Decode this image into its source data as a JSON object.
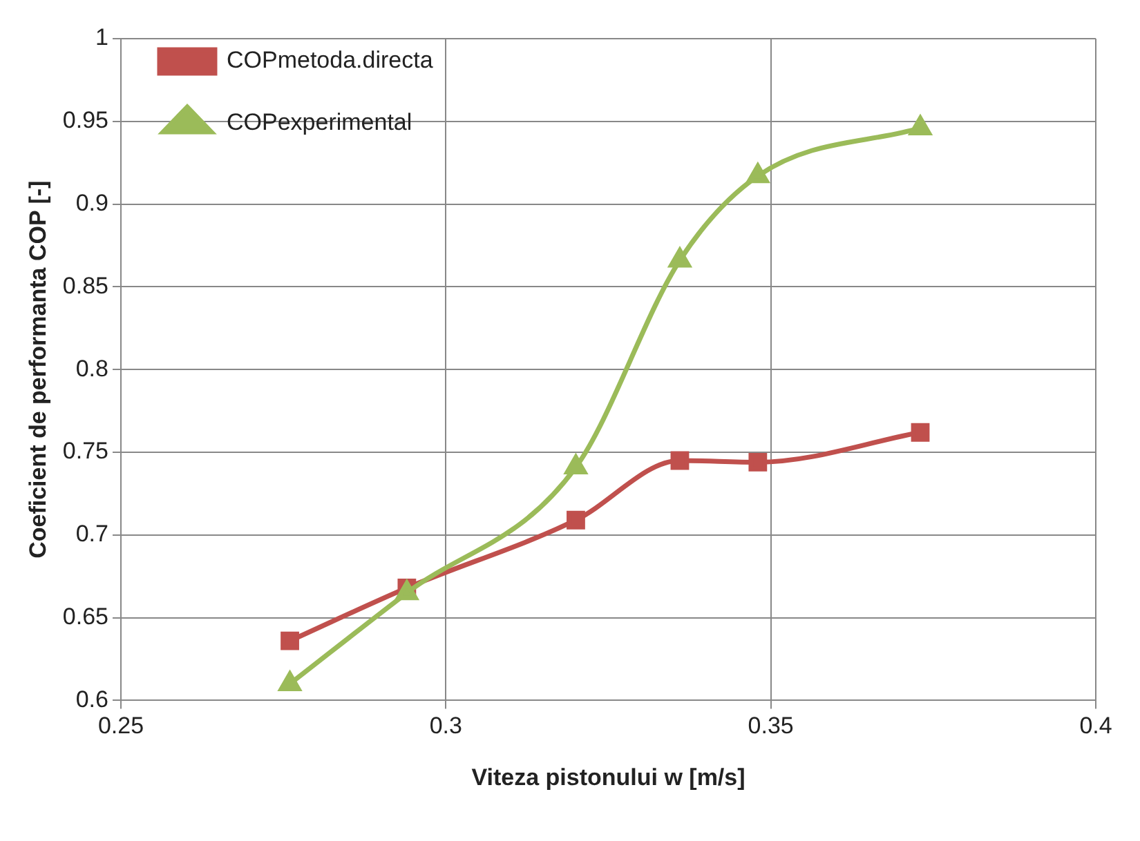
{
  "chart_data": {
    "type": "line",
    "xlabel": "Viteza pistonului w [m/s]",
    "ylabel": "Coeficient de performanta COP [-]",
    "x": [
      0.276,
      0.294,
      0.32,
      0.336,
      0.348,
      0.373
    ],
    "series": [
      {
        "name": "COPmetoda.directa",
        "color": "#c0504d",
        "marker": "square",
        "values": [
          0.636,
          0.668,
          0.709,
          0.745,
          0.744,
          0.762
        ]
      },
      {
        "name": "COPexperimental",
        "color": "#9bbb59",
        "marker": "triangle",
        "values": [
          0.61,
          0.665,
          0.741,
          0.866,
          0.917,
          0.946
        ]
      }
    ],
    "xlim": [
      0.25,
      0.4
    ],
    "xticks": [
      0.25,
      0.3,
      0.35,
      0.4
    ],
    "ylim": [
      0.6,
      1
    ],
    "yticks": [
      0.6,
      0.65,
      0.7,
      0.75,
      0.8,
      0.85,
      0.9,
      0.95,
      1
    ],
    "grid": true,
    "legend": "top left",
    "line_style": "solid"
  }
}
